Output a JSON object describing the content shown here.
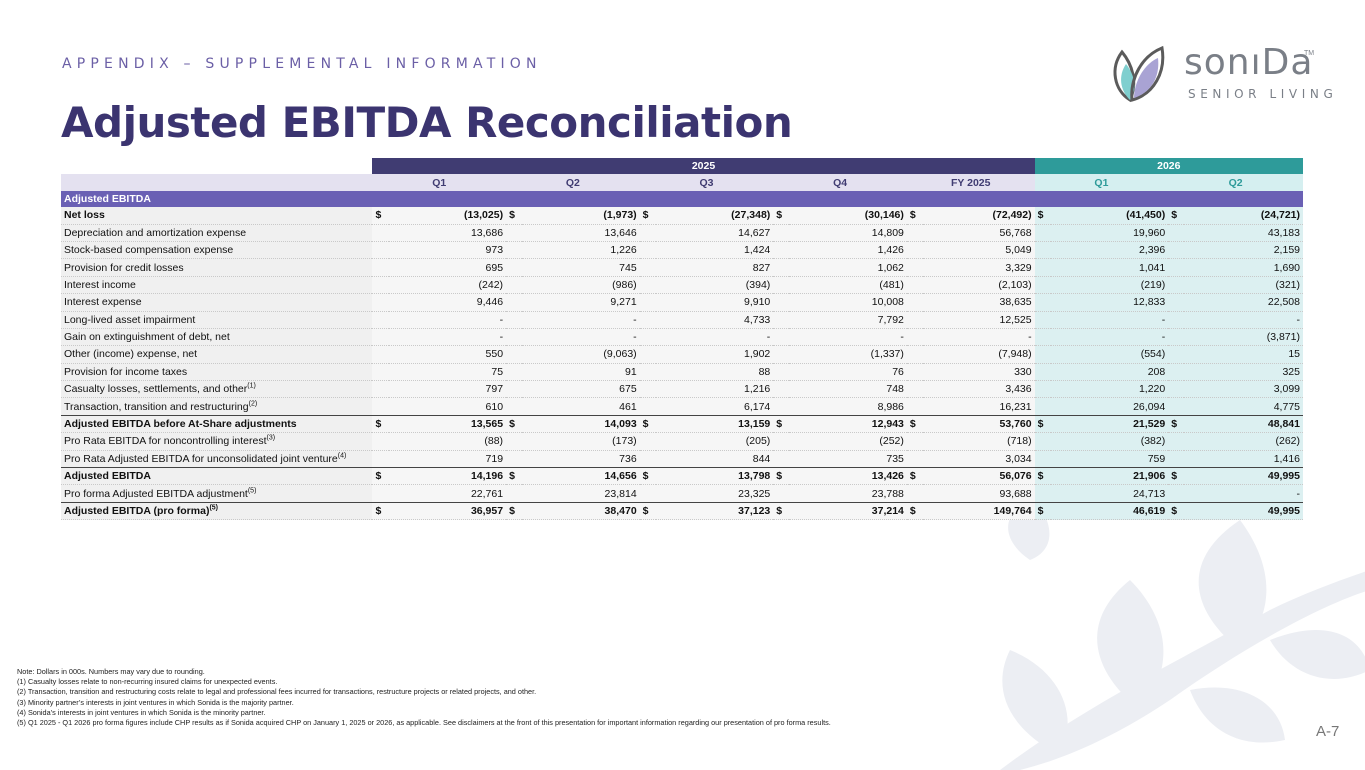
{
  "header": {
    "kicker": "APPENDIX – SUPPLEMENTAL INFORMATION",
    "title": "Adjusted EBITDA Reconciliation"
  },
  "logo": {
    "wordmark": "sonıDa",
    "tm": "TM",
    "subtitle": "SENIOR LIVING",
    "colors": {
      "teal": "#7fcfcf",
      "lavender": "#a9a3d4",
      "outline": "#5b5b5b"
    }
  },
  "colors": {
    "title": "#3b3470",
    "year_2025": "#403c72",
    "year_2026": "#2e9b9a",
    "section": "#6a60b4",
    "quarter_bg_2026": "#dcf0f1"
  },
  "table": {
    "years": [
      {
        "label": "2025"
      },
      {
        "label": "2026"
      }
    ],
    "columns": [
      "Q1",
      "Q2",
      "Q3",
      "Q4",
      "FY 2025",
      "Q1",
      "Q2"
    ],
    "section_label": "Adjusted EBITDA",
    "rows": [
      {
        "label": "Net loss",
        "sup": "",
        "bold": true,
        "dollar": true,
        "total": false,
        "values": [
          "(13,025)",
          "(1,973)",
          "(27,348)",
          "(30,146)",
          "(72,492)",
          "(41,450)",
          "(24,721)"
        ]
      },
      {
        "label": "Depreciation and amortization expense",
        "sup": "",
        "bold": false,
        "dollar": false,
        "total": false,
        "values": [
          "13,686",
          "13,646",
          "14,627",
          "14,809",
          "56,768",
          "19,960",
          "43,183"
        ]
      },
      {
        "label": "Stock-based compensation expense",
        "sup": "",
        "bold": false,
        "dollar": false,
        "total": false,
        "values": [
          "973",
          "1,226",
          "1,424",
          "1,426",
          "5,049",
          "2,396",
          "2,159"
        ]
      },
      {
        "label": "Provision for credit losses",
        "sup": "",
        "bold": false,
        "dollar": false,
        "total": false,
        "values": [
          "695",
          "745",
          "827",
          "1,062",
          "3,329",
          "1,041",
          "1,690"
        ]
      },
      {
        "label": "Interest income",
        "sup": "",
        "bold": false,
        "dollar": false,
        "total": false,
        "values": [
          "(242)",
          "(986)",
          "(394)",
          "(481)",
          "(2,103)",
          "(219)",
          "(321)"
        ]
      },
      {
        "label": "Interest expense",
        "sup": "",
        "bold": false,
        "dollar": false,
        "total": false,
        "values": [
          "9,446",
          "9,271",
          "9,910",
          "10,008",
          "38,635",
          "12,833",
          "22,508"
        ]
      },
      {
        "label": "Long-lived asset impairment",
        "sup": "",
        "bold": false,
        "dollar": false,
        "total": false,
        "values": [
          "-",
          "-",
          "4,733",
          "7,792",
          "12,525",
          "-",
          "-"
        ]
      },
      {
        "label": "Gain on extinguishment of debt, net",
        "sup": "",
        "bold": false,
        "dollar": false,
        "total": false,
        "values": [
          "-",
          "-",
          "-",
          "-",
          "-",
          "-",
          "(3,871)"
        ]
      },
      {
        "label": "Other (income) expense, net",
        "sup": "",
        "bold": false,
        "dollar": false,
        "total": false,
        "values": [
          "550",
          "(9,063)",
          "1,902",
          "(1,337)",
          "(7,948)",
          "(554)",
          "15"
        ]
      },
      {
        "label": "Provision for income taxes",
        "sup": "",
        "bold": false,
        "dollar": false,
        "total": false,
        "values": [
          "75",
          "91",
          "88",
          "76",
          "330",
          "208",
          "325"
        ]
      },
      {
        "label": "Casualty losses, settlements, and other",
        "sup": "(1)",
        "bold": false,
        "dollar": false,
        "total": false,
        "values": [
          "797",
          "675",
          "1,216",
          "748",
          "3,436",
          "1,220",
          "3,099"
        ]
      },
      {
        "label": "Transaction, transition and restructuring",
        "sup": "(2)",
        "bold": false,
        "dollar": false,
        "total": false,
        "values": [
          "610",
          "461",
          "6,174",
          "8,986",
          "16,231",
          "26,094",
          "4,775"
        ]
      },
      {
        "label": "Adjusted EBITDA before At-Share adjustments",
        "sup": "",
        "bold": true,
        "dollar": true,
        "total": true,
        "values": [
          "13,565",
          "14,093",
          "13,159",
          "12,943",
          "53,760",
          "21,529",
          "48,841"
        ]
      },
      {
        "label": "Pro Rata EBITDA for noncontrolling interest",
        "sup": "(3)",
        "bold": false,
        "dollar": false,
        "total": false,
        "values": [
          "(88)",
          "(173)",
          "(205)",
          "(252)",
          "(718)",
          "(382)",
          "(262)"
        ]
      },
      {
        "label": "Pro Rata Adjusted EBITDA for unconsolidated joint venture",
        "sup": "(4)",
        "bold": false,
        "dollar": false,
        "total": false,
        "values": [
          "719",
          "736",
          "844",
          "735",
          "3,034",
          "759",
          "1,416"
        ]
      },
      {
        "label": "Adjusted EBITDA",
        "sup": "",
        "bold": true,
        "dollar": true,
        "total": true,
        "values": [
          "14,196",
          "14,656",
          "13,798",
          "13,426",
          "56,076",
          "21,906",
          "49,995"
        ]
      },
      {
        "label": "Pro forma Adjusted EBITDA adjustment",
        "sup": "(5)",
        "bold": false,
        "dollar": false,
        "total": false,
        "values": [
          "22,761",
          "23,814",
          "23,325",
          "23,788",
          "93,688",
          "24,713",
          "-"
        ]
      },
      {
        "label": "Adjusted EBITDA (pro forma)",
        "sup": "(5)",
        "bold": true,
        "dollar": true,
        "total": true,
        "values": [
          "36,957",
          "38,470",
          "37,123",
          "37,214",
          "149,764",
          "46,619",
          "49,995"
        ]
      }
    ],
    "currency_symbol": "$"
  },
  "notes": [
    "Note: Dollars in 000s. Numbers may vary due to rounding.",
    "(1) Casualty losses relate to non-recurring insured claims for unexpected events.",
    "(2) Transaction, transition and restructuring costs relate to legal and professional fees incurred for transactions, restructure projects or related projects, and other.",
    "(3) Minority partner’s interests in joint ventures in which Sonida is the majority partner.",
    "(4) Sonida’s interests in joint ventures in which Sonida is the minority partner.",
    "(5) Q1 2025 - Q1 2026 pro forma figures include CHP results as if Sonida acquired CHP on January 1, 2025 or 2026, as applicable. See disclaimers at the front of this presentation for important information regarding our presentation of pro forma results."
  ],
  "page_number": "A-7"
}
